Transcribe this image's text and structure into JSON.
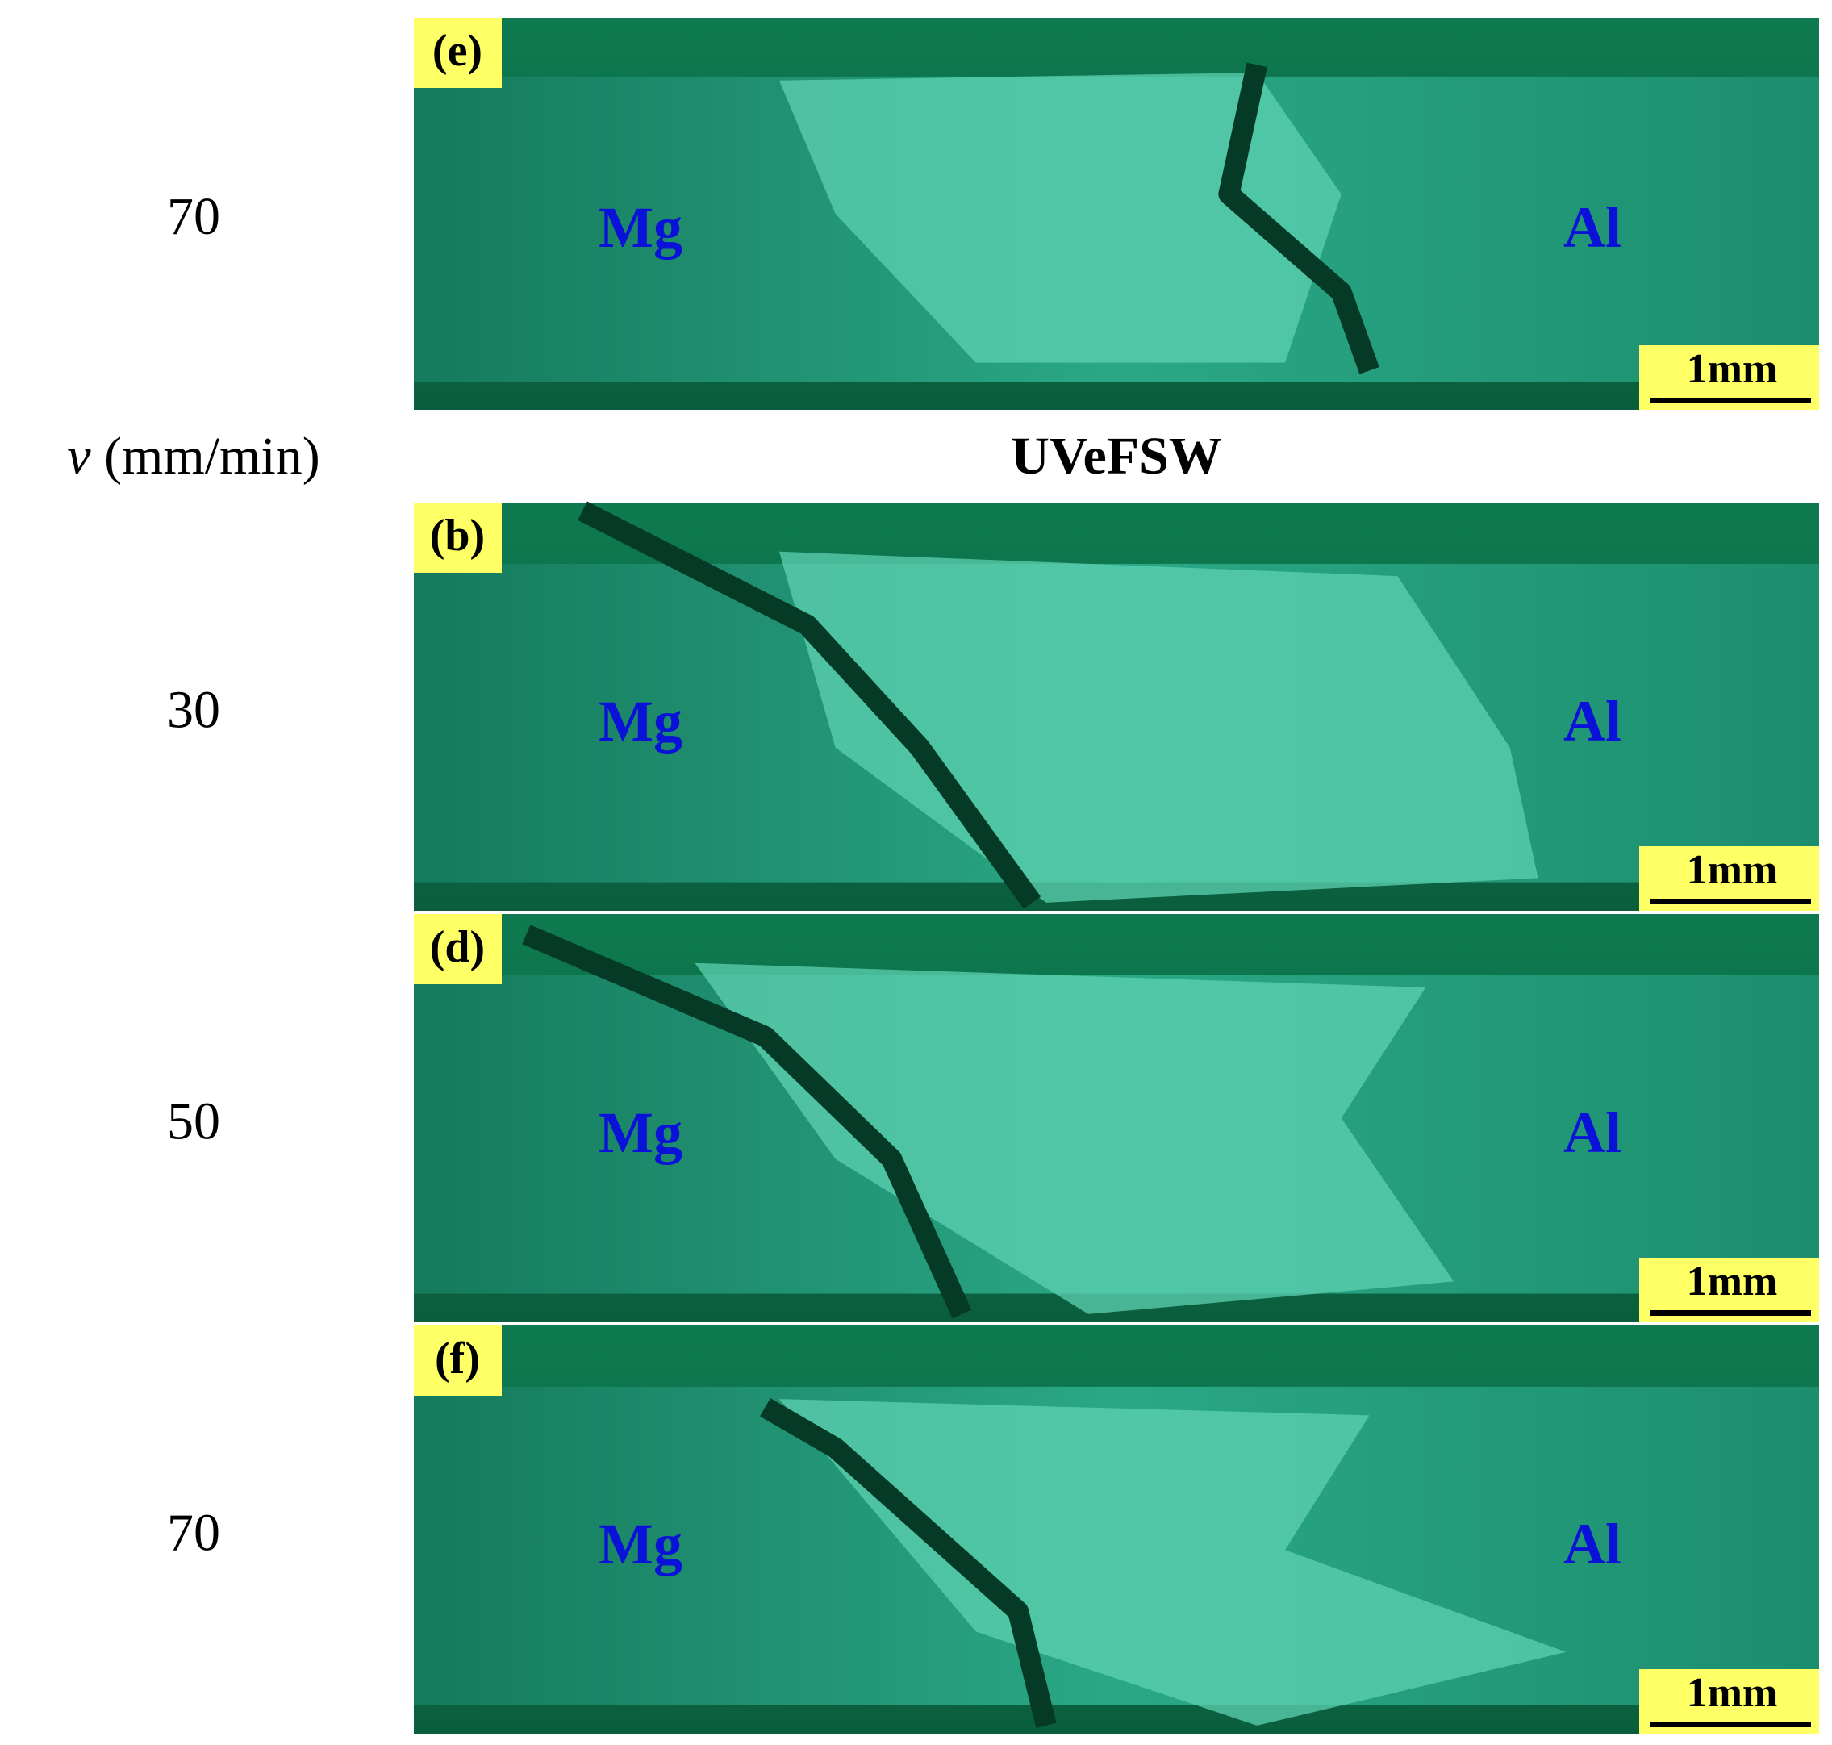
{
  "header": {
    "axis_symbol": "v",
    "axis_unit": "(mm/min)",
    "process": "UVeFSW"
  },
  "panels": [
    {
      "label": "(e)",
      "row_value": 70,
      "left_material": "Mg",
      "right_material": "Al",
      "scale_bar": "1mm"
    },
    {
      "label": "(b)",
      "row_value": 30,
      "left_material": "Mg",
      "right_material": "Al",
      "scale_bar": "1mm"
    },
    {
      "label": "(d)",
      "row_value": 50,
      "left_material": "Mg",
      "right_material": "Al",
      "scale_bar": "1mm"
    },
    {
      "label": "(f)",
      "row_value": 70,
      "left_material": "Mg",
      "right_material": "Al",
      "scale_bar": "1mm"
    }
  ]
}
